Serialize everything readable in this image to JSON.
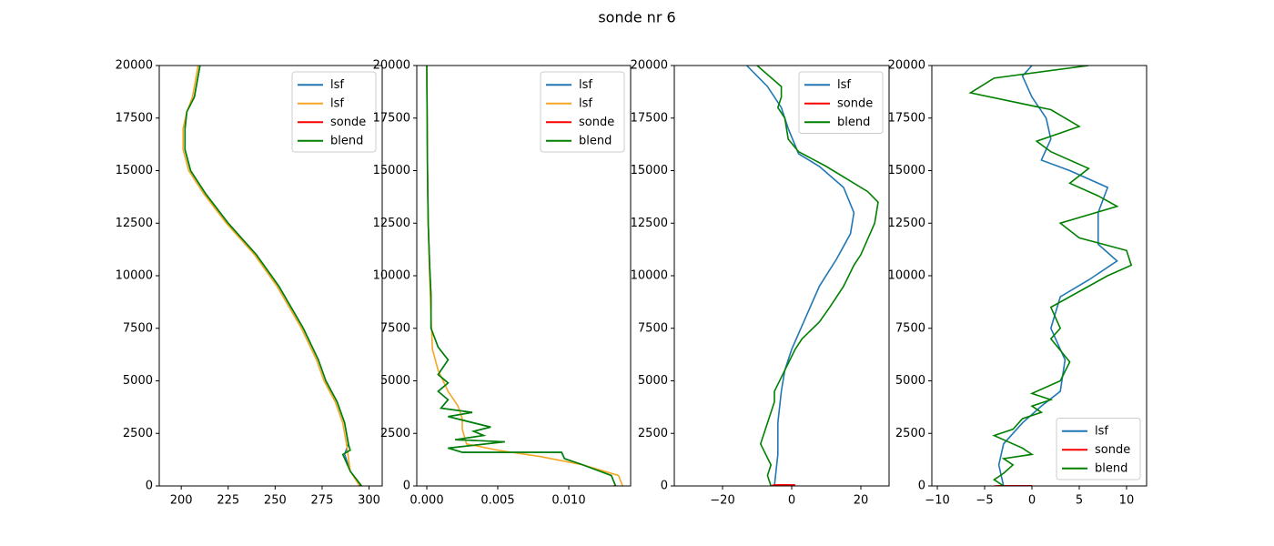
{
  "title": "sonde nr 6",
  "chart_data": [
    {
      "type": "line",
      "legend": "upper right",
      "xlim": [
        188.3,
        307
      ],
      "xticks": [
        200,
        225,
        250,
        275,
        300
      ],
      "ylim": [
        0,
        20000
      ],
      "yticks": [
        0,
        2500,
        5000,
        7500,
        10000,
        12500,
        15000,
        17500,
        20000
      ],
      "series": [
        {
          "name": "lsf",
          "color": "#1f77b4",
          "x": [
            296,
            290,
            287,
            289,
            287,
            283,
            277,
            273,
            265,
            252,
            240,
            225,
            213,
            205,
            202,
            202,
            203,
            207,
            210
          ],
          "values": [
            0,
            700,
            1500,
            2000,
            3000,
            4000,
            5000,
            6000,
            7500,
            9500,
            11000,
            12500,
            13900,
            15000,
            16000,
            17000,
            17800,
            18500,
            20000
          ]
        },
        {
          "name": "lsf",
          "color": "#f5a623",
          "x": [
            295,
            290,
            288,
            286,
            282,
            276,
            272,
            264,
            251,
            239,
            224,
            212,
            204,
            201,
            201,
            203,
            206,
            209
          ],
          "values": [
            0,
            700,
            2000,
            3000,
            4000,
            5000,
            6000,
            7500,
            9500,
            11000,
            12500,
            13900,
            15000,
            16000,
            17000,
            17800,
            18500,
            20000
          ]
        },
        {
          "name": "sonde",
          "color": "#ff0000",
          "x": [
            296,
            295
          ],
          "values": [
            0,
            50
          ]
        },
        {
          "name": "blend",
          "color": "#008000",
          "x": [
            296,
            290,
            286,
            290,
            289,
            287,
            283,
            277,
            273,
            265,
            252,
            240,
            225,
            213,
            205,
            202,
            202,
            203,
            207,
            210
          ],
          "values": [
            0,
            700,
            1500,
            1700,
            2000,
            3000,
            4000,
            5000,
            6000,
            7500,
            9500,
            11000,
            12500,
            13900,
            15000,
            16000,
            17000,
            17800,
            18500,
            20000
          ]
        }
      ]
    },
    {
      "type": "line",
      "legend": "upper right",
      "xlim": [
        -0.000705,
        0.01436
      ],
      "xticks": [
        {
          "value": 0,
          "label": "0.000"
        },
        {
          "value": 0.005,
          "label": "0.005"
        },
        {
          "value": 0.01,
          "label": "0.010"
        }
      ],
      "ylim": [
        0,
        20000
      ],
      "yticks": [
        0,
        2500,
        5000,
        7500,
        10000,
        12500,
        15000,
        17500,
        20000
      ],
      "series": [
        {
          "name": "lsf",
          "color": "#1f77b4",
          "x": [
            0.0133,
            0.013,
            0.011,
            0.0097,
            0.0095,
            0.0025,
            0.0015,
            0.0055,
            0.002,
            0.004,
            0.0033,
            0.0045,
            0.0015,
            0.0032,
            0.001,
            0.0015,
            0.0008,
            0.0015,
            0.0008,
            0.0015,
            0.0008,
            0.0003,
            0.0003,
            0.0002,
            0.0001,
            5e-05,
            0
          ],
          "values": [
            0,
            500,
            1000,
            1300,
            1600,
            1600,
            1800,
            2100,
            2200,
            2400,
            2600,
            2800,
            3300,
            3500,
            3700,
            4100,
            4500,
            4900,
            5300,
            6000,
            6600,
            7500,
            9000,
            10500,
            12500,
            15000,
            20000
          ]
        },
        {
          "name": "lsf",
          "color": "#f5a623",
          "x": [
            0.0138,
            0.0135,
            0.011,
            0.008,
            0.005,
            0.0028,
            0.0025,
            0.0025,
            0.0022,
            0.0015,
            0.0008,
            0.0004,
            0.0003,
            0.0002,
            0.0001,
            5e-05,
            0
          ],
          "values": [
            0,
            500,
            1000,
            1400,
            1700,
            2000,
            2700,
            3200,
            3800,
            4500,
            5500,
            6500,
            8000,
            10000,
            12500,
            15000,
            20000
          ]
        },
        {
          "name": "sonde",
          "color": "#ff0000",
          "x": [
            0.0133,
            0.0132
          ],
          "values": [
            0,
            50
          ]
        },
        {
          "name": "blend",
          "color": "#008000",
          "x": [
            0.0133,
            0.013,
            0.011,
            0.0097,
            0.0095,
            0.0025,
            0.0015,
            0.0055,
            0.002,
            0.004,
            0.0033,
            0.0045,
            0.0015,
            0.0032,
            0.001,
            0.0015,
            0.0008,
            0.0015,
            0.0008,
            0.0015,
            0.0008,
            0.0003,
            0.0003,
            0.0002,
            0.0001,
            5e-05,
            0
          ],
          "values": [
            0,
            500,
            1000,
            1300,
            1600,
            1600,
            1800,
            2100,
            2200,
            2400,
            2600,
            2800,
            3300,
            3500,
            3700,
            4100,
            4500,
            4900,
            5300,
            6000,
            6600,
            7500,
            9000,
            10500,
            12500,
            15000,
            20000
          ]
        }
      ]
    },
    {
      "type": "line",
      "legend": "upper right",
      "xlim": [
        -33.95,
        28.16
      ],
      "xticks": [
        {
          "value": -20,
          "label": "−20"
        },
        0,
        20
      ],
      "ylim": [
        0,
        20000
      ],
      "yticks": [
        0,
        2500,
        5000,
        7500,
        10000,
        12500,
        15000,
        17500,
        20000
      ],
      "series": [
        {
          "name": "lsf",
          "color": "#1f77b4",
          "x": [
            -5,
            -4,
            -4,
            -3,
            -2,
            0,
            4,
            8,
            13,
            17,
            18,
            15,
            8,
            2,
            -1,
            -3,
            -7,
            -13
          ],
          "values": [
            0,
            1500,
            3000,
            4500,
            5500,
            6500,
            8000,
            9500,
            10800,
            12000,
            13000,
            14200,
            15200,
            15800,
            17000,
            18000,
            19000,
            20000
          ]
        },
        {
          "name": "sonde",
          "color": "#ff0000",
          "x": [
            -6,
            -5,
            1
          ],
          "values": [
            0,
            50,
            50
          ]
        },
        {
          "name": "blend",
          "color": "#008000",
          "x": [
            -6,
            -7,
            -6,
            -9,
            -7,
            -5,
            -5,
            -2,
            1,
            3,
            8,
            11,
            15,
            18,
            20,
            24,
            25,
            22,
            10,
            2,
            -1,
            -2,
            -4,
            -3,
            -3,
            -10
          ],
          "values": [
            0,
            500,
            1000,
            2000,
            3000,
            4000,
            4500,
            5500,
            6500,
            7000,
            7800,
            8500,
            9500,
            10500,
            11000,
            12500,
            13500,
            14000,
            15200,
            15900,
            16500,
            17500,
            18000,
            18500,
            19000,
            20000
          ]
        }
      ]
    },
    {
      "type": "line",
      "legend": "lower right",
      "xlim": [
        -10.58,
        12.12
      ],
      "xticks": [
        {
          "value": -10,
          "label": "−10"
        },
        {
          "value": -5,
          "label": "−5"
        },
        0,
        5,
        10
      ],
      "ylim": [
        0,
        20000
      ],
      "yticks": [
        0,
        2500,
        5000,
        7500,
        10000,
        12500,
        15000,
        17500,
        20000
      ],
      "series": [
        {
          "name": "lsf",
          "color": "#1f77b4",
          "x": [
            -3,
            -3.5,
            -3,
            -1,
            1,
            3,
            3.5,
            2,
            3,
            6,
            9,
            7,
            7,
            8,
            4,
            1,
            2,
            1.5,
            0,
            -1,
            0
          ],
          "values": [
            0,
            1000,
            2000,
            3000,
            3800,
            4500,
            6000,
            7500,
            9000,
            9800,
            10700,
            11500,
            13000,
            14200,
            15000,
            15500,
            16500,
            17500,
            18500,
            19500,
            20000
          ]
        },
        {
          "name": "sonde",
          "color": "#ff0000",
          "x": [
            -4,
            -3.5,
            0
          ],
          "values": [
            0,
            10,
            10
          ]
        },
        {
          "name": "blend",
          "color": "#008000",
          "x": [
            -3,
            -4,
            -3,
            -2,
            -3,
            0,
            -1,
            -4,
            -2,
            -1,
            1,
            0,
            2,
            0,
            3,
            4,
            2,
            3,
            2,
            8,
            10.5,
            10,
            5,
            3,
            9,
            7,
            4,
            6,
            2,
            0.5,
            5,
            2,
            -6.5,
            -4,
            6
          ],
          "values": [
            0,
            300,
            600,
            1000,
            1300,
            1500,
            1800,
            2400,
            2700,
            3200,
            3500,
            3800,
            4100,
            4400,
            5000,
            5900,
            7000,
            7500,
            8500,
            10000,
            10500,
            11200,
            11800,
            12500,
            13300,
            13800,
            14400,
            15100,
            15900,
            16400,
            17100,
            17900,
            18700,
            19400,
            20000
          ]
        }
      ]
    }
  ]
}
